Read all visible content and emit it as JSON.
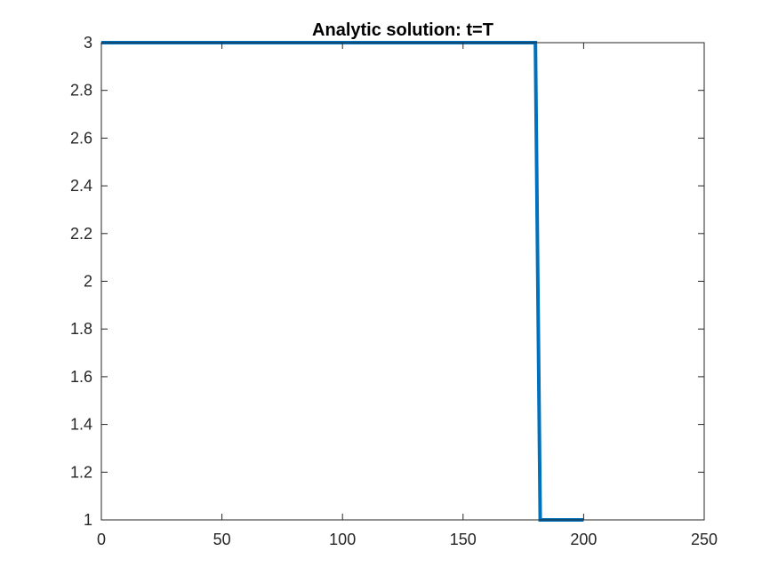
{
  "chart_data": {
    "type": "line",
    "title": "Analytic solution: t=T",
    "xlabel": "",
    "ylabel": "",
    "xlim": [
      0,
      250
    ],
    "ylim": [
      1,
      3
    ],
    "xticks": [
      0,
      50,
      100,
      150,
      200,
      250
    ],
    "yticks": [
      1,
      1.2,
      1.4,
      1.6,
      1.8,
      2,
      2.2,
      2.4,
      2.6,
      2.8,
      3
    ],
    "xtick_labels": [
      "0",
      "50",
      "100",
      "150",
      "200",
      "250"
    ],
    "ytick_labels": [
      "1",
      "1.2",
      "1.4",
      "1.6",
      "1.8",
      "2",
      "2.2",
      "2.4",
      "2.6",
      "2.8",
      "3"
    ],
    "grid": false,
    "series": [
      {
        "color": "#0072bd",
        "x": [
          0,
          180,
          182,
          200
        ],
        "y": [
          3,
          3,
          1,
          1
        ]
      }
    ]
  }
}
